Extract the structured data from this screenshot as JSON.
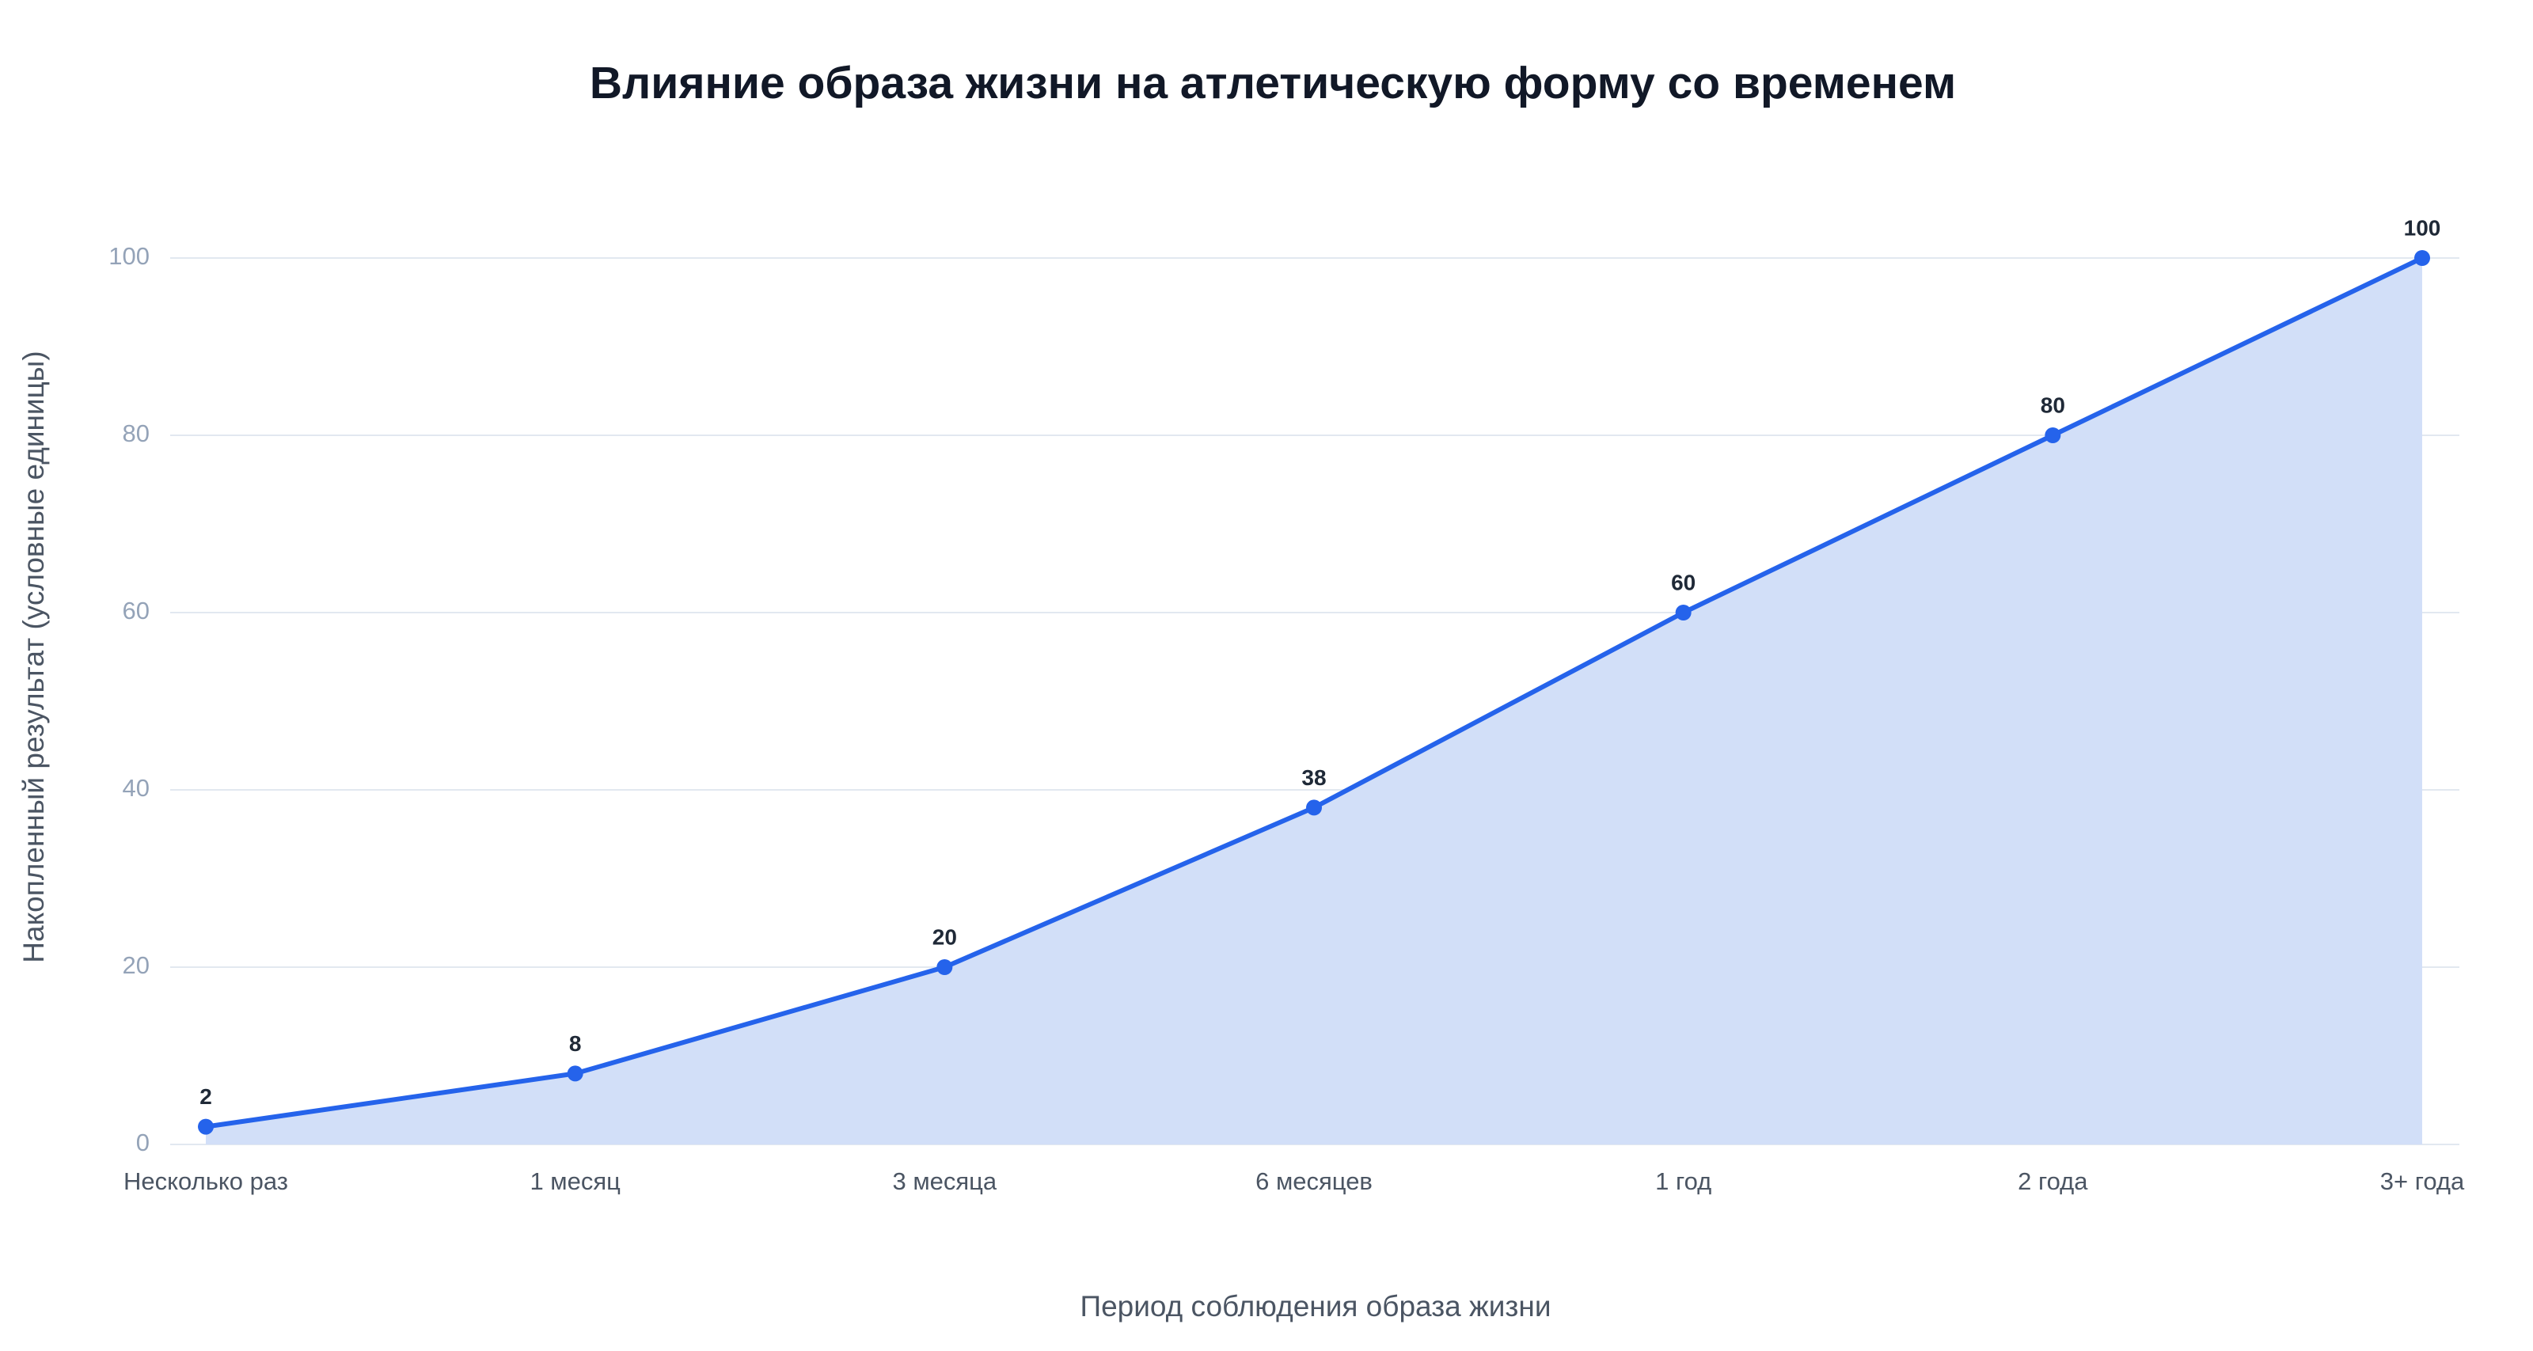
{
  "chart_data": {
    "type": "area",
    "title": "Влияние образа жизни на атлетическую форму со временем",
    "x_label": "Период соблюдения образа жизни",
    "y_label": "Накопленный результат (условные единицы)",
    "categories": [
      "Несколько раз",
      "1 месяц",
      "3 месяца",
      "6 месяцев",
      "1 год",
      "2 года",
      "3+ года"
    ],
    "series": [
      {
        "name": "Накопленный результат",
        "color": "#2563eb",
        "fill_color": "#d2dff8",
        "values": [
          2,
          8,
          20,
          38,
          60,
          80,
          100
        ]
      }
    ],
    "ylim": [
      0,
      100
    ],
    "yticks": [
      0,
      20,
      40,
      60,
      80,
      100
    ],
    "grid": true
  }
}
